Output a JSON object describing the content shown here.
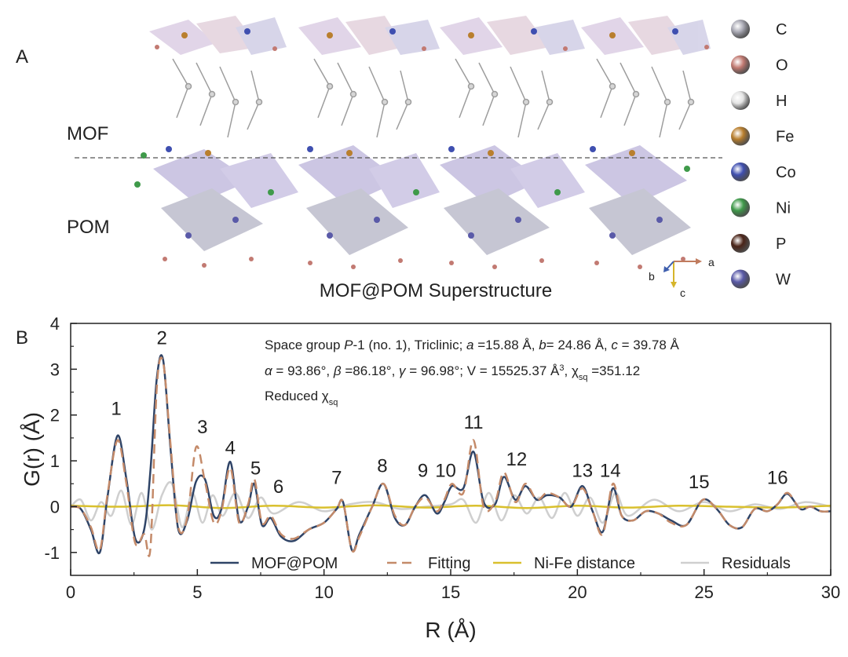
{
  "panel_a": {
    "label": "A",
    "mof_label": "MOF",
    "pom_label": "POM",
    "title": "MOF@POM Superstructure",
    "axes": {
      "a": "a",
      "b": "b",
      "c": "c"
    },
    "elements": [
      {
        "symbol": "C",
        "color": "#a9a9b4"
      },
      {
        "symbol": "O",
        "color": "#c27a72"
      },
      {
        "symbol": "H",
        "color": "#e4e4e4"
      },
      {
        "symbol": "Fe",
        "color": "#b97f2e"
      },
      {
        "symbol": "Co",
        "color": "#3f4fb0"
      },
      {
        "symbol": "Ni",
        "color": "#3f9a4a"
      },
      {
        "symbol": "P",
        "color": "#4a2418"
      },
      {
        "symbol": "W",
        "color": "#5a5aa8"
      }
    ]
  },
  "panel_b": {
    "label": "B",
    "info": {
      "line1": {
        "a": "Space group ",
        "b": "P",
        "c": "-1 (no. 1), Triclinic; ",
        "d": "a",
        "e": " =15.88 Å, ",
        "f": "b",
        "g": "= 24.86 Å, ",
        "h": "c",
        "i": " = 39.78 Å"
      },
      "line2": {
        "a": "α",
        "b": " = 93.86°, ",
        "c": "β",
        "d": " =86.18°, ",
        "e": "γ",
        "f": " = 96.98°; V = 15525.37 Å",
        "g": "3",
        "h": ", χ",
        "i": "sq",
        "j": " =351.12"
      },
      "line3": {
        "a": "Reduced χ",
        "b": "sq"
      }
    }
  },
  "chart_data": {
    "type": "line",
    "xlabel": "R (Å)",
    "ylabel": "G(r) (Å)",
    "xlim": [
      0,
      30
    ],
    "ylim": [
      -1.5,
      4
    ],
    "xticks": [
      0,
      5,
      10,
      15,
      20,
      25,
      30
    ],
    "yticks": [
      -1,
      0,
      1,
      2,
      3,
      4
    ],
    "legend_position": "bottom",
    "series": [
      {
        "name": "MOF@POM",
        "color": "#2f4467",
        "style": "solid",
        "x": [
          0,
          0.4,
          0.8,
          1.15,
          1.45,
          1.85,
          2.2,
          2.55,
          2.9,
          3.15,
          3.4,
          3.65,
          3.95,
          4.25,
          4.6,
          4.95,
          5.3,
          5.65,
          5.95,
          6.3,
          6.65,
          7.0,
          7.25,
          7.55,
          7.9,
          8.3,
          8.8,
          9.4,
          10.0,
          10.5,
          10.75,
          11.1,
          11.4,
          11.9,
          12.35,
          12.8,
          13.2,
          13.6,
          14.0,
          14.45,
          14.75,
          15.05,
          15.5,
          15.9,
          16.3,
          16.75,
          17.1,
          17.55,
          17.95,
          18.4,
          18.8,
          19.3,
          19.75,
          20.2,
          20.6,
          21.0,
          21.4,
          21.75,
          22.2,
          22.7,
          23.2,
          23.7,
          24.3,
          24.95,
          25.5,
          26.0,
          26.5,
          27.0,
          27.5,
          27.9,
          28.3,
          28.8,
          29.2,
          29.6,
          30.0
        ],
        "y": [
          0.0,
          -0.05,
          -0.5,
          -1.0,
          0.2,
          1.55,
          0.6,
          -0.7,
          -0.5,
          0.8,
          2.8,
          3.2,
          1.2,
          -0.5,
          -0.3,
          0.55,
          0.6,
          -0.2,
          -0.05,
          0.98,
          -0.3,
          0.0,
          0.5,
          -0.4,
          -0.25,
          -0.65,
          -0.75,
          -0.5,
          -0.35,
          -0.05,
          0.1,
          -0.95,
          -0.6,
          0.0,
          0.5,
          -0.25,
          -0.4,
          0.0,
          0.25,
          -0.15,
          0.1,
          0.45,
          0.4,
          1.2,
          0.1,
          0.05,
          0.65,
          0.15,
          0.45,
          0.15,
          0.25,
          0.2,
          0.0,
          0.45,
          -0.1,
          -0.55,
          0.4,
          -0.2,
          -0.3,
          -0.1,
          -0.15,
          -0.3,
          -0.4,
          0.15,
          -0.05,
          -0.4,
          -0.45,
          -0.05,
          -0.1,
          0.05,
          0.28,
          -0.05,
          0.0,
          -0.1,
          -0.1
        ]
      },
      {
        "name": "Fitting",
        "color": "#c48a69",
        "style": "dashed",
        "x": [
          0,
          0.4,
          0.8,
          1.15,
          1.45,
          1.85,
          2.2,
          2.55,
          2.9,
          3.15,
          3.4,
          3.65,
          3.95,
          4.25,
          4.6,
          4.95,
          5.3,
          5.65,
          5.95,
          6.3,
          6.65,
          7.0,
          7.25,
          7.55,
          7.9,
          8.3,
          8.8,
          9.4,
          10.0,
          10.5,
          10.75,
          11.1,
          11.4,
          11.9,
          12.35,
          12.8,
          13.2,
          13.6,
          14.0,
          14.45,
          14.75,
          15.05,
          15.5,
          15.9,
          16.3,
          16.75,
          17.1,
          17.55,
          17.95,
          18.4,
          18.8,
          19.3,
          19.75,
          20.2,
          20.6,
          21.0,
          21.4,
          21.75,
          22.2,
          22.7,
          23.2,
          23.7,
          24.3,
          24.95,
          25.5,
          26.0,
          26.5,
          27.0,
          27.5,
          27.9,
          28.3,
          28.8,
          29.2,
          29.6,
          30.0
        ],
        "y": [
          0.0,
          -0.05,
          -0.45,
          -0.95,
          0.25,
          1.45,
          0.5,
          -0.8,
          -0.6,
          -0.9,
          2.6,
          3.15,
          1.3,
          -0.45,
          -0.25,
          1.3,
          0.55,
          -0.35,
          -0.1,
          0.85,
          -0.35,
          0.05,
          0.6,
          -0.35,
          -0.2,
          -0.6,
          -0.7,
          -0.5,
          -0.35,
          -0.05,
          0.1,
          -0.95,
          -0.65,
          0.0,
          0.5,
          -0.2,
          -0.4,
          0.0,
          0.2,
          -0.1,
          0.15,
          0.5,
          0.3,
          1.45,
          0.0,
          0.1,
          0.75,
          0.1,
          0.5,
          0.15,
          0.3,
          0.2,
          0.0,
          0.4,
          -0.1,
          -0.6,
          0.5,
          -0.2,
          -0.3,
          -0.1,
          -0.15,
          -0.35,
          -0.4,
          0.15,
          -0.05,
          -0.4,
          -0.45,
          -0.05,
          -0.1,
          0.05,
          0.3,
          -0.05,
          0.0,
          -0.1,
          -0.1
        ]
      },
      {
        "name": "Ni-Fe distance",
        "color": "#d9c02e",
        "style": "solid",
        "x": [
          0,
          2,
          4,
          6,
          8,
          10,
          12,
          14,
          16,
          18,
          20,
          22,
          24,
          26,
          28,
          30
        ],
        "y": [
          0.02,
          0.0,
          0.03,
          -0.03,
          0.02,
          -0.02,
          0.03,
          -0.02,
          0.02,
          -0.03,
          0.02,
          -0.02,
          0.02,
          0.0,
          -0.02,
          0.02
        ]
      },
      {
        "name": "Residuals",
        "color": "#cfcfcf",
        "style": "solid",
        "x": [
          0,
          0.4,
          0.8,
          1.2,
          1.6,
          2.0,
          2.4,
          2.8,
          3.2,
          3.6,
          4.0,
          4.4,
          4.8,
          5.2,
          5.6,
          6.0,
          6.5,
          7.0,
          7.5,
          8.0,
          9.0,
          10.0,
          11.0,
          12.0,
          13.0,
          14.0,
          15.0,
          15.5,
          16.0,
          16.5,
          17.0,
          17.5,
          18.0,
          18.5,
          19.0,
          19.5,
          20.0,
          20.5,
          21.0,
          21.5,
          22.0,
          23.0,
          24.0,
          25.0,
          26.0,
          27.0,
          28.0,
          29.0,
          30.0
        ],
        "y": [
          0.0,
          0.15,
          -0.3,
          0.1,
          -0.2,
          0.35,
          -0.4,
          0.3,
          -0.5,
          0.25,
          0.5,
          -0.45,
          0.3,
          -0.35,
          0.25,
          -0.2,
          0.3,
          -0.25,
          0.2,
          -0.15,
          0.1,
          -0.1,
          0.05,
          0.1,
          -0.05,
          0.0,
          0.05,
          0.15,
          -0.35,
          0.3,
          -0.3,
          0.25,
          -0.15,
          0.2,
          -0.25,
          0.3,
          -0.2,
          0.2,
          -0.35,
          0.3,
          -0.2,
          0.15,
          -0.1,
          0.1,
          -0.1,
          0.05,
          -0.05,
          0.1,
          0.0
        ]
      }
    ],
    "annotations": [
      {
        "text": "1",
        "x": 1.8,
        "y": 2.0
      },
      {
        "text": "2",
        "x": 3.6,
        "y": 3.55
      },
      {
        "text": "3",
        "x": 5.2,
        "y": 1.6
      },
      {
        "text": "4",
        "x": 6.3,
        "y": 1.15
      },
      {
        "text": "5",
        "x": 7.3,
        "y": 0.7
      },
      {
        "text": "6",
        "x": 8.2,
        "y": 0.3
      },
      {
        "text": "7",
        "x": 10.5,
        "y": 0.5
      },
      {
        "text": "8",
        "x": 12.3,
        "y": 0.75
      },
      {
        "text": "9",
        "x": 13.9,
        "y": 0.65
      },
      {
        "text": "10",
        "x": 14.8,
        "y": 0.65
      },
      {
        "text": "11",
        "x": 15.9,
        "y": 1.7
      },
      {
        "text": "12",
        "x": 17.6,
        "y": 0.9
      },
      {
        "text": "13",
        "x": 20.2,
        "y": 0.65
      },
      {
        "text": "14",
        "x": 21.3,
        "y": 0.65
      },
      {
        "text": "15",
        "x": 24.8,
        "y": 0.4
      },
      {
        "text": "16",
        "x": 27.9,
        "y": 0.5
      }
    ]
  }
}
